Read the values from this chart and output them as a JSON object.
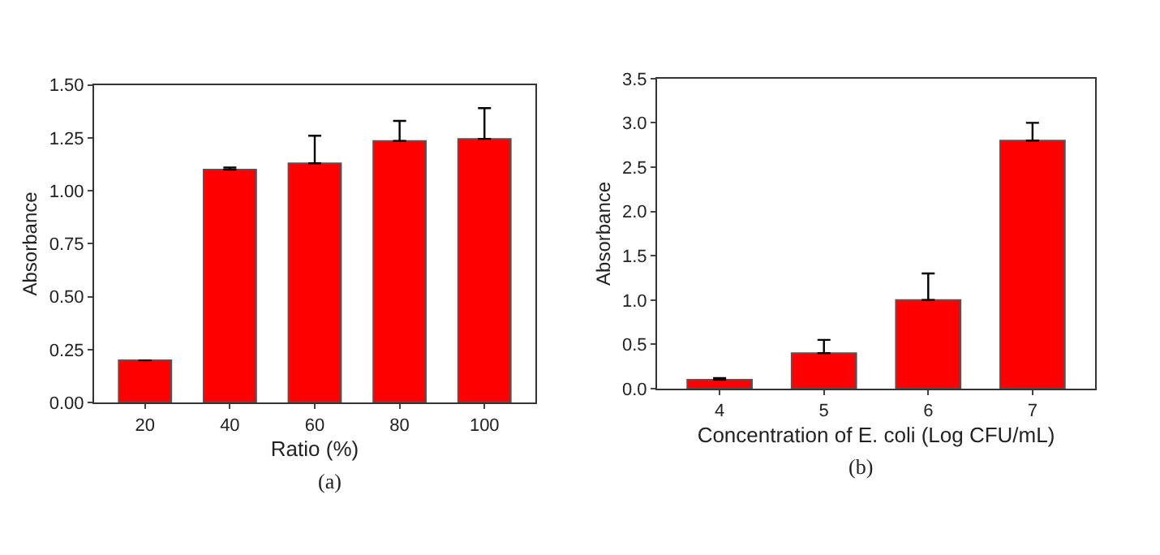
{
  "chart_data": [
    {
      "type": "bar",
      "categories": [
        "20",
        "40",
        "60",
        "80",
        "100"
      ],
      "values": [
        0.2,
        1.1,
        1.13,
        1.235,
        1.245
      ],
      "errors": [
        null,
        [
          1.1,
          1.11
        ],
        [
          1.13,
          1.26
        ],
        [
          1.235,
          1.33
        ],
        [
          1.245,
          1.39
        ]
      ],
      "color": "#ff0000",
      "ylabel": "Absorbance",
      "xlabel": "Ratio (%)",
      "ylim": [
        0,
        1.5
      ],
      "yticks": [
        {
          "value": 0,
          "label": "0.00"
        },
        {
          "value": 0.25,
          "label": "0.25"
        },
        {
          "value": 0.5,
          "label": "0.50"
        },
        {
          "value": 0.75,
          "label": "0.75"
        },
        {
          "value": 1,
          "label": "1.00"
        },
        {
          "value": 1.25,
          "label": "1.25"
        },
        {
          "value": 1.5,
          "label": "1.50"
        }
      ],
      "annotations": [
        "(a)"
      ]
    },
    {
      "type": "bar",
      "categories": [
        "4",
        "5",
        "6",
        "7"
      ],
      "values": [
        0.1,
        0.4,
        1.0,
        2.8
      ],
      "errors": [
        [
          0.1,
          0.12
        ],
        [
          0.4,
          0.55
        ],
        [
          1.0,
          1.3
        ],
        [
          2.8,
          3.0
        ]
      ],
      "color": "#ff0000",
      "ylabel": "Absorbance",
      "xlabel": "Concentration of E. coli (Log CFU/mL)",
      "ylim": [
        0,
        3.5
      ],
      "yticks": [
        {
          "value": 0,
          "label": "0.0"
        },
        0.5,
        {
          "value": 1,
          "label": "1.0"
        },
        1.5,
        {
          "value": 2,
          "label": "2.0"
        },
        2.5,
        {
          "value": 3,
          "label": "3.0"
        },
        3.5
      ],
      "annotations": [
        "(b)"
      ]
    }
  ]
}
